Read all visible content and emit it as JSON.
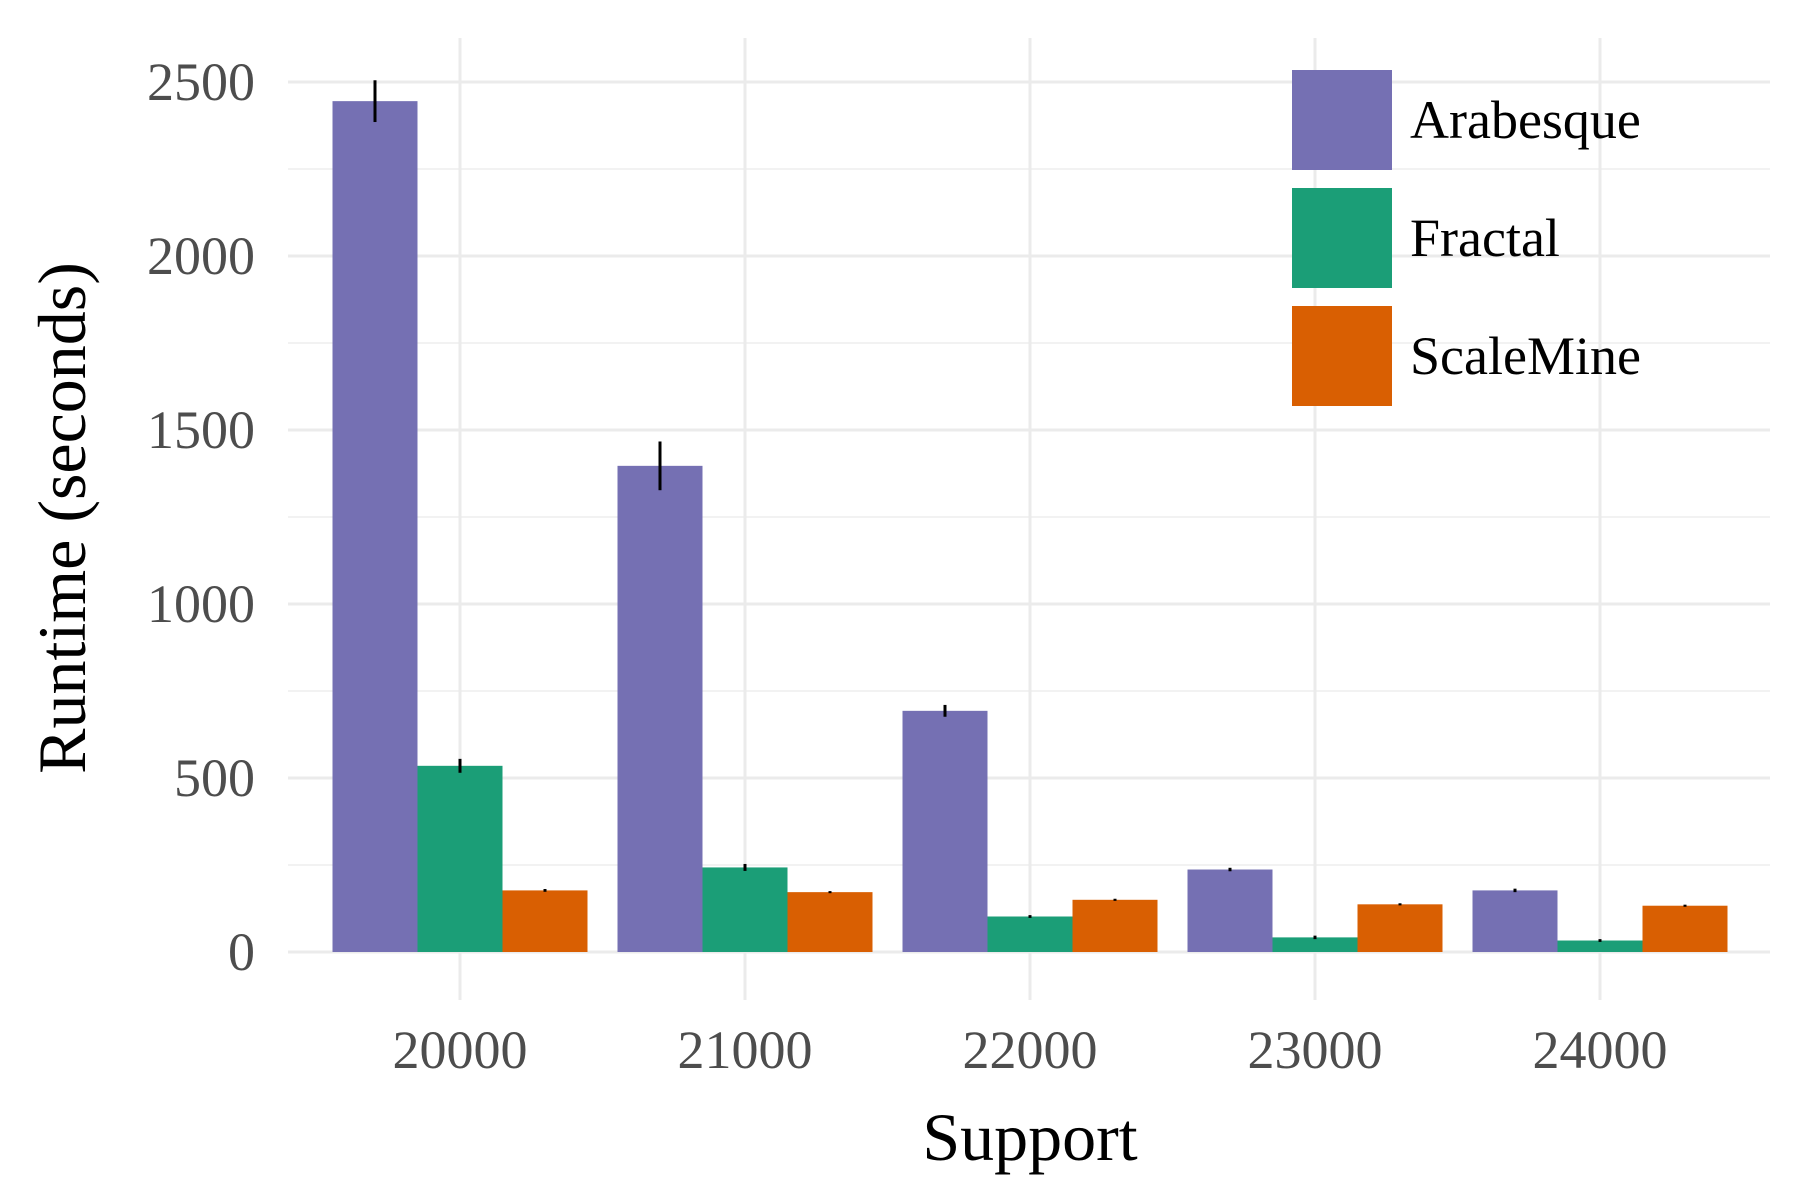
{
  "chart_data": {
    "type": "bar",
    "xlabel": "Support",
    "ylabel": "Runtime (seconds)",
    "categories": [
      "20000",
      "21000",
      "22000",
      "23000",
      "24000"
    ],
    "ylim": [
      0,
      2500
    ],
    "yticks": [
      0,
      500,
      1000,
      1500,
      2000,
      2500
    ],
    "grid": true,
    "legend_position": "top-right",
    "series": [
      {
        "name": "Arabesque",
        "color": "#7570b3",
        "values": [
          2445,
          1397,
          693,
          237,
          177
        ],
        "error_low": [
          2385,
          1327,
          676,
          232,
          172
        ],
        "error_high": [
          2505,
          1467,
          710,
          242,
          182
        ]
      },
      {
        "name": "Fractal",
        "color": "#1b9e77",
        "values": [
          535,
          243,
          102,
          42,
          33
        ],
        "error_low": [
          515,
          233,
          98,
          37,
          29
        ],
        "error_high": [
          555,
          253,
          106,
          47,
          37
        ]
      },
      {
        "name": "ScaleMine",
        "color": "#d95f02",
        "values": [
          177,
          172,
          150,
          137,
          133
        ],
        "error_low": [
          173,
          169,
          147,
          134,
          130
        ],
        "error_high": [
          181,
          175,
          153,
          140,
          136
        ]
      }
    ]
  }
}
